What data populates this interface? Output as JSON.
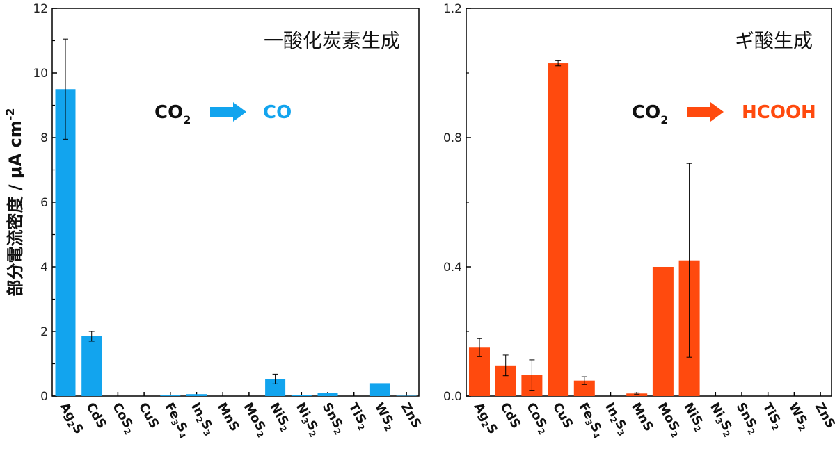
{
  "chart_data": [
    {
      "type": "bar",
      "title": "一酸化炭素生成",
      "ylabel": "部分電流密度 / μA cm",
      "ylabel_sup": "-2",
      "ylim": [
        0,
        12
      ],
      "yticks": [
        "0",
        "2",
        "4",
        "6",
        "8",
        "10",
        "12"
      ],
      "categories": [
        {
          "base": "Ag",
          "sub": "2",
          "rest": "S"
        },
        {
          "base": "CdS",
          "sub": "",
          "rest": ""
        },
        {
          "base": "CoS",
          "sub": "2",
          "rest": ""
        },
        {
          "base": "CuS",
          "sub": "",
          "rest": ""
        },
        {
          "base": "Fe",
          "sub": "3",
          "rest": "S",
          "sub2": "4"
        },
        {
          "base": "In",
          "sub": "2",
          "rest": "S",
          "sub2": "3"
        },
        {
          "base": "MnS",
          "sub": "",
          "rest": ""
        },
        {
          "base": "MoS",
          "sub": "2",
          "rest": ""
        },
        {
          "base": "NiS",
          "sub": "2",
          "rest": ""
        },
        {
          "base": "Ni",
          "sub": "3",
          "rest": "S",
          "sub2": "2"
        },
        {
          "base": "SnS",
          "sub": "2",
          "rest": ""
        },
        {
          "base": "TiS",
          "sub": "2",
          "rest": ""
        },
        {
          "base": "WS",
          "sub": "2",
          "rest": ""
        },
        {
          "base": "ZnS",
          "sub": "",
          "rest": ""
        }
      ],
      "values": [
        9.5,
        1.85,
        0,
        0,
        0.02,
        0.06,
        0,
        0,
        0.53,
        0.04,
        0.09,
        0,
        0.4,
        0.01
      ],
      "errors": [
        1.55,
        0.15,
        0,
        0,
        0,
        0,
        0,
        0,
        0.15,
        0,
        0,
        0,
        0,
        0
      ],
      "color": "#12a4ee",
      "reaction": {
        "reactant": "CO",
        "reactant_sub": "2",
        "product": "CO",
        "product_color": "#12a4ee"
      }
    },
    {
      "type": "bar",
      "title": "ギ酸生成",
      "ylim": [
        0,
        1.2
      ],
      "yticks": [
        "0.0",
        "0.4",
        "0.8",
        "1.2"
      ],
      "categories": [
        {
          "base": "Ag",
          "sub": "2",
          "rest": "S"
        },
        {
          "base": "CdS",
          "sub": "",
          "rest": ""
        },
        {
          "base": "CoS",
          "sub": "2",
          "rest": ""
        },
        {
          "base": "CuS",
          "sub": "",
          "rest": ""
        },
        {
          "base": "Fe",
          "sub": "3",
          "rest": "S",
          "sub2": "4"
        },
        {
          "base": "In",
          "sub": "2",
          "rest": "S",
          "sub2": "3"
        },
        {
          "base": "MnS",
          "sub": "",
          "rest": ""
        },
        {
          "base": "MoS",
          "sub": "2",
          "rest": ""
        },
        {
          "base": "NiS",
          "sub": "2",
          "rest": ""
        },
        {
          "base": "Ni",
          "sub": "3",
          "rest": "S",
          "sub2": "2"
        },
        {
          "base": "SnS",
          "sub": "2",
          "rest": ""
        },
        {
          "base": "TiS",
          "sub": "2",
          "rest": ""
        },
        {
          "base": "WS",
          "sub": "2",
          "rest": ""
        },
        {
          "base": "ZnS",
          "sub": "",
          "rest": ""
        }
      ],
      "values": [
        0.15,
        0.095,
        0.065,
        1.03,
        0.048,
        0,
        0.008,
        0.4,
        0.42,
        0,
        0,
        0,
        0,
        0
      ],
      "errors": [
        0.028,
        0.032,
        0.047,
        0.008,
        0.012,
        0,
        0.002,
        0,
        0.3,
        0,
        0,
        0,
        0,
        0
      ],
      "color": "#ff4a0e",
      "reaction": {
        "reactant": "CO",
        "reactant_sub": "2",
        "product": "HCOOH",
        "product_color": "#ff4a0e"
      }
    }
  ]
}
